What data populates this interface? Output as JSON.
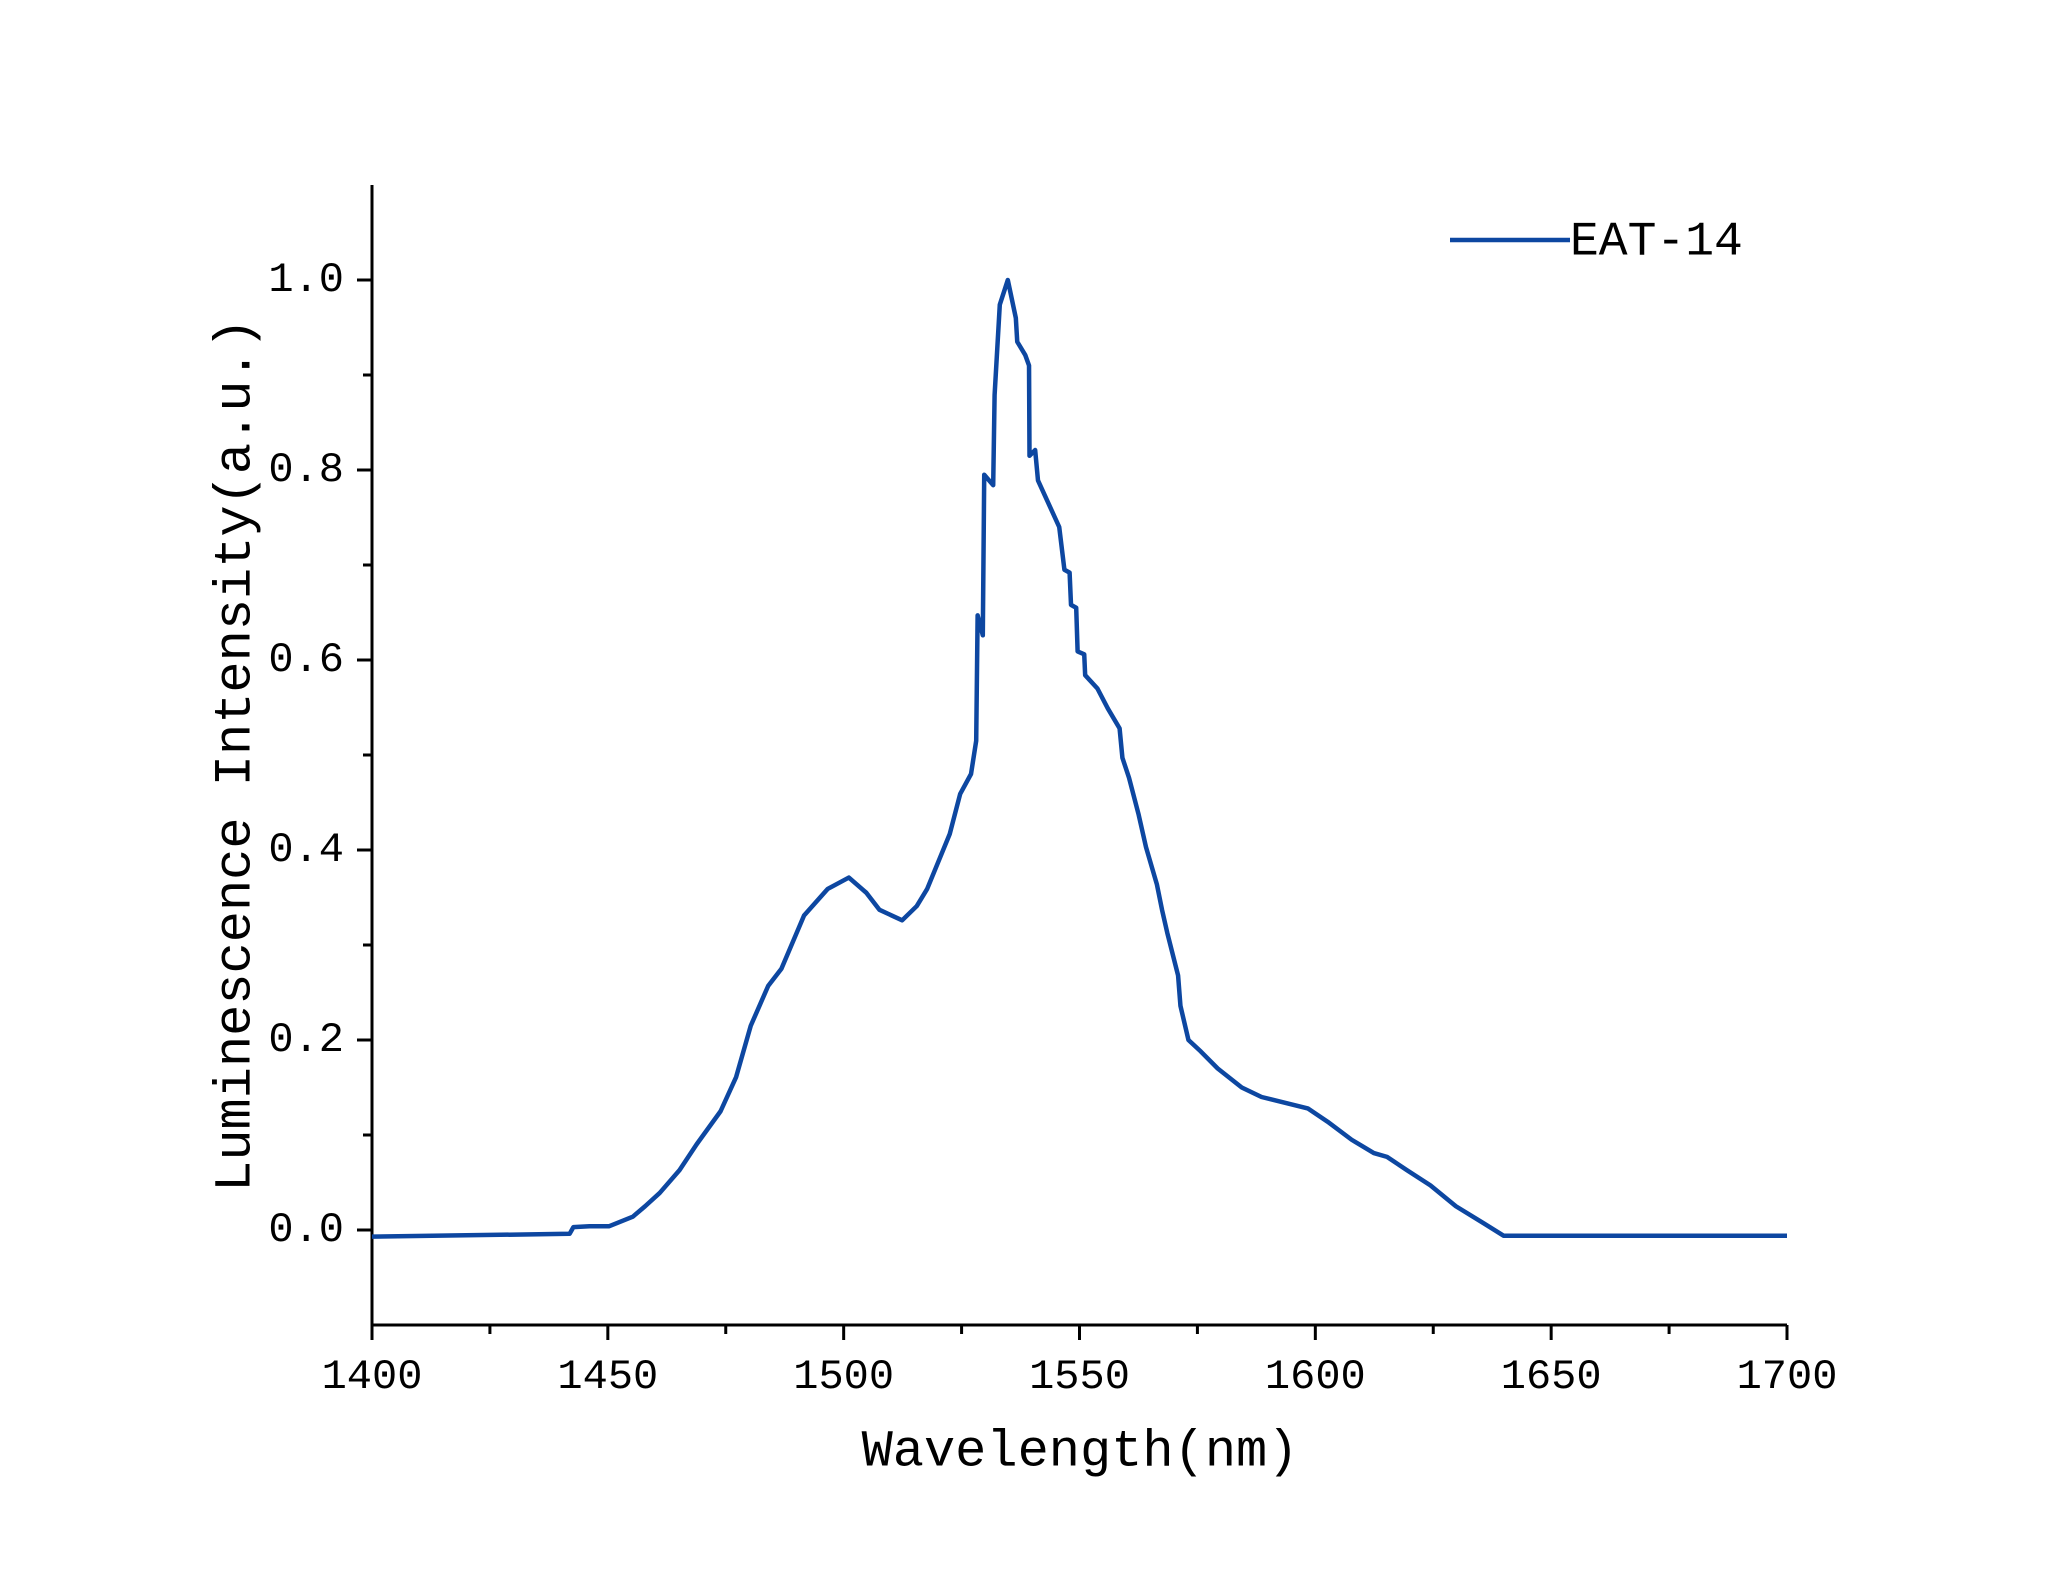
{
  "chart_data": {
    "type": "line",
    "x_label": "Wavelength(nm)",
    "y_label": "Luminescence Intensity(a.u.)",
    "xlim": [
      1400,
      1700
    ],
    "xticks": [
      1400,
      1450,
      1500,
      1550,
      1600,
      1650,
      1700
    ],
    "ylim": [
      -0.1,
      1.1
    ],
    "yticks": [
      {
        "value": 0,
        "label": "0.0"
      },
      0.2,
      0.4,
      0.6,
      0.8,
      {
        "value": 1,
        "label": "1.0"
      }
    ],
    "grid": false,
    "legend": "upper right",
    "x": [
      1400.0,
      1441.9,
      1442.7,
      1446.1,
      1450.3,
      1455.3,
      1457.9,
      1461.0,
      1465.2,
      1468.8,
      1473.9,
      1477.2,
      1480.3,
      1484.0,
      1486.8,
      1491.6,
      1496.6,
      1501.1,
      1504.8,
      1507.6,
      1512.4,
      1515.5,
      1517.7,
      1522.5,
      1524.7,
      1527.0,
      1528.1,
      1528.4,
      1529.5,
      1529.8,
      1531.7,
      1532.0,
      1533.1,
      1534.8,
      1536.5,
      1536.8,
      1538.5,
      1539.3,
      1539.4,
      1540.6,
      1541.2,
      1545.7,
      1546.8,
      1547.9,
      1548.2,
      1549.3,
      1549.6,
      1551.0,
      1551.2,
      1553.8,
      1556.0,
      1558.5,
      1559.1,
      1560.5,
      1562.5,
      1564.1,
      1566.4,
      1567.5,
      1568.6,
      1570.9,
      1571.4,
      1573.1,
      1575.7,
      1579.3,
      1584.4,
      1588.6,
      1598.4,
      1602.6,
      1607.7,
      1612.4,
      1615.2,
      1619.4,
      1624.4,
      1629.8,
      1635.7,
      1639.9,
      1700.0
    ],
    "series": [
      {
        "name": "EAT-14",
        "color": "#0d47a1",
        "values": [
          -0.007,
          -0.004,
          0.003,
          0.004,
          0.004,
          0.014,
          0.025,
          0.039,
          0.063,
          0.09,
          0.125,
          0.161,
          0.215,
          0.257,
          0.275,
          0.331,
          0.359,
          0.371,
          0.355,
          0.337,
          0.326,
          0.341,
          0.359,
          0.417,
          0.459,
          0.48,
          0.515,
          0.647,
          0.626,
          0.795,
          0.784,
          0.879,
          0.974,
          1.0,
          0.96,
          0.935,
          0.921,
          0.91,
          0.815,
          0.821,
          0.789,
          0.74,
          0.695,
          0.692,
          0.658,
          0.655,
          0.609,
          0.606,
          0.584,
          0.57,
          0.549,
          0.528,
          0.497,
          0.476,
          0.438,
          0.403,
          0.364,
          0.337,
          0.313,
          0.268,
          0.236,
          0.2,
          0.188,
          0.17,
          0.15,
          0.14,
          0.128,
          0.114,
          0.095,
          0.081,
          0.077,
          0.063,
          0.047,
          0.025,
          0.007,
          -0.006,
          -0.006
        ]
      }
    ]
  }
}
